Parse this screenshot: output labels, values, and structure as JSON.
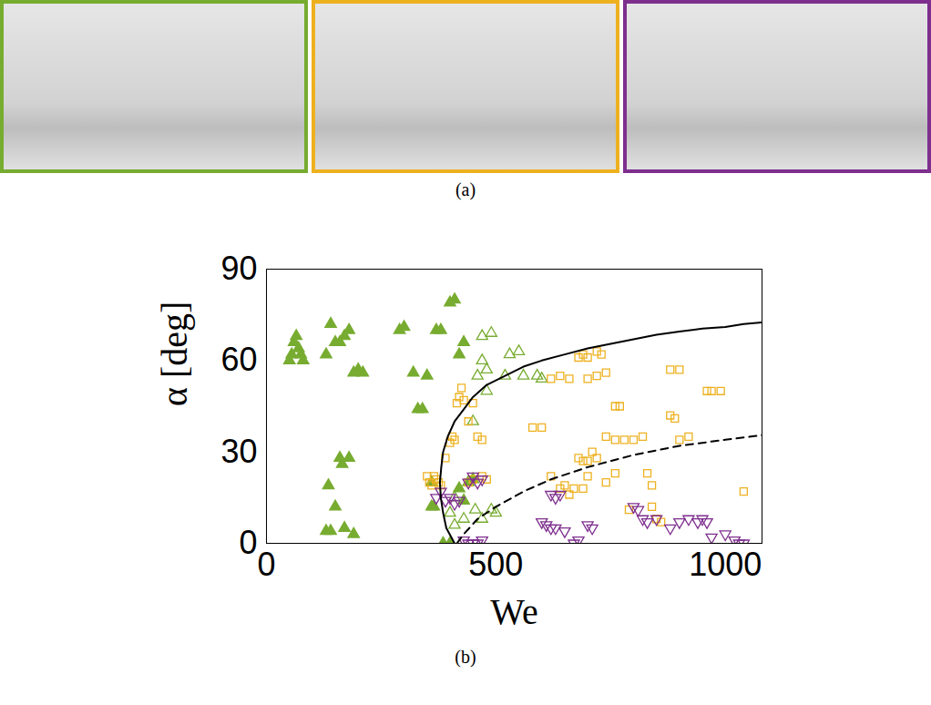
{
  "figure": {
    "panel_a_label": "(a)",
    "panel_b_label": "(b)",
    "photo_borders": [
      {
        "color": "#77ac30"
      },
      {
        "color": "#edb120"
      },
      {
        "color": "#7e2f8e"
      }
    ]
  },
  "chart_data": {
    "type": "scatter",
    "xlabel": "We",
    "ylabel": "α [deg]",
    "xlim": [
      0,
      1080
    ],
    "ylim": [
      0,
      90
    ],
    "xticks": [
      0,
      500,
      1000
    ],
    "yticks": [
      0,
      30,
      60,
      90
    ],
    "grid": false,
    "series": [
      {
        "type": "scatter",
        "color": "#77ac30",
        "marker": "triangle",
        "x": [
          50,
          55,
          60,
          70,
          75,
          80,
          65,
          130,
          140,
          150,
          160,
          170,
          180,
          190,
          200,
          210,
          130,
          135,
          140,
          150,
          160,
          165,
          170,
          180,
          190,
          290,
          300,
          320,
          330,
          340,
          350,
          370,
          380,
          360,
          365,
          400,
          410,
          385,
          400,
          420,
          430,
          420,
          430,
          440,
          450,
          360
        ],
        "values": [
          60,
          62,
          66,
          64,
          62,
          60,
          68,
          62,
          72,
          66,
          66,
          68,
          70,
          56,
          57,
          56,
          4,
          19,
          4,
          12,
          28,
          26,
          5,
          28,
          3,
          70,
          71,
          56,
          44,
          44,
          55,
          70,
          70,
          20,
          12,
          79,
          80,
          0,
          0,
          18,
          14,
          62,
          66,
          20,
          21,
          12
        ]
      },
      {
        "type": "scatter",
        "color": "#77ac30",
        "marker": "triangle-open",
        "x": [
          400,
          410,
          450,
          460,
          470,
          480,
          470,
          490,
          480,
          455,
          470,
          490,
          500,
          520,
          530,
          550,
          560,
          590,
          600,
          410,
          430
        ],
        "values": [
          10,
          15,
          40,
          55,
          60,
          57,
          68,
          69,
          50,
          11,
          8,
          11,
          10,
          55,
          62,
          63,
          55,
          55,
          54,
          6,
          8
        ]
      },
      {
        "type": "scatter",
        "color": "#edb120",
        "marker": "square-open",
        "x": [
          350,
          355,
          360,
          365,
          370,
          375,
          380,
          390,
          400,
          405,
          410,
          415,
          420,
          425,
          430,
          440,
          450,
          460,
          470,
          470,
          480,
          440,
          450,
          580,
          600,
          620,
          640,
          620,
          640,
          660,
          680,
          690,
          700,
          720,
          730,
          700,
          720,
          740,
          680,
          690,
          700,
          650,
          660,
          670,
          690,
          700,
          710,
          720,
          740,
          760,
          780,
          800,
          820,
          760,
          770,
          830,
          840,
          790,
          840,
          880,
          890,
          900,
          920,
          880,
          900,
          960,
          970,
          990,
          1040,
          860,
          850,
          760,
          740
        ],
        "values": [
          22,
          20,
          19,
          22,
          21,
          20,
          19,
          28,
          33,
          35,
          34,
          46,
          48,
          51,
          47,
          40,
          46,
          35,
          34,
          22,
          21,
          20,
          21,
          38,
          38,
          22,
          18,
          54,
          55,
          54,
          61,
          62,
          61,
          63,
          62,
          54,
          55,
          56,
          28,
          27,
          27,
          19,
          16,
          18,
          18,
          22,
          30,
          28,
          35,
          34,
          34,
          34,
          35,
          45,
          45,
          23,
          19,
          11,
          12,
          42,
          41,
          34,
          35,
          57,
          57,
          50,
          50,
          50,
          17,
          7,
          8,
          23,
          20
        ]
      },
      {
        "type": "scatter",
        "color": "#7e2f8e",
        "marker": "triangle-down-open",
        "x": [
          370,
          380,
          390,
          400,
          410,
          420,
          440,
          450,
          460,
          470,
          430,
          440,
          450,
          460,
          470,
          620,
          630,
          640,
          600,
          610,
          620,
          630,
          650,
          670,
          680,
          700,
          710,
          800,
          810,
          820,
          830,
          850,
          900,
          920,
          940,
          950,
          960,
          880,
          970,
          1000,
          1020,
          1030,
          1040
        ],
        "values": [
          15,
          17,
          14,
          15,
          13,
          14,
          20,
          22,
          20,
          21,
          1,
          0,
          0,
          0,
          1,
          16,
          15,
          16,
          7,
          6,
          5,
          5,
          4,
          0,
          1,
          6,
          5,
          12,
          11,
          8,
          7,
          8,
          7,
          8,
          7,
          8,
          7,
          5,
          2,
          3,
          1,
          0,
          0
        ]
      },
      {
        "type": "line",
        "color": "#000000",
        "line_style": "solid",
        "x": [
          410,
          392,
          385,
          380,
          378,
          381,
          385,
          395,
          410,
          430,
          450,
          480,
          520,
          560,
          600,
          650,
          700,
          750,
          800,
          850,
          900,
          950,
          1000,
          1040,
          1080
        ],
        "values": [
          0,
          5,
          10,
          15,
          20,
          25,
          30,
          35,
          40,
          44,
          48,
          52,
          55,
          58,
          60,
          62,
          64,
          65.5,
          67,
          68.5,
          69.5,
          70.5,
          71,
          72,
          72.5
        ]
      },
      {
        "type": "line",
        "color": "#000000",
        "line_style": "dashed",
        "x": [
          415,
          430,
          460,
          500,
          560,
          620,
          700,
          800,
          900,
          1000,
          1080
        ],
        "values": [
          0,
          3,
          8,
          12,
          17,
          21,
          25,
          29,
          32,
          34,
          35.5
        ]
      }
    ]
  }
}
